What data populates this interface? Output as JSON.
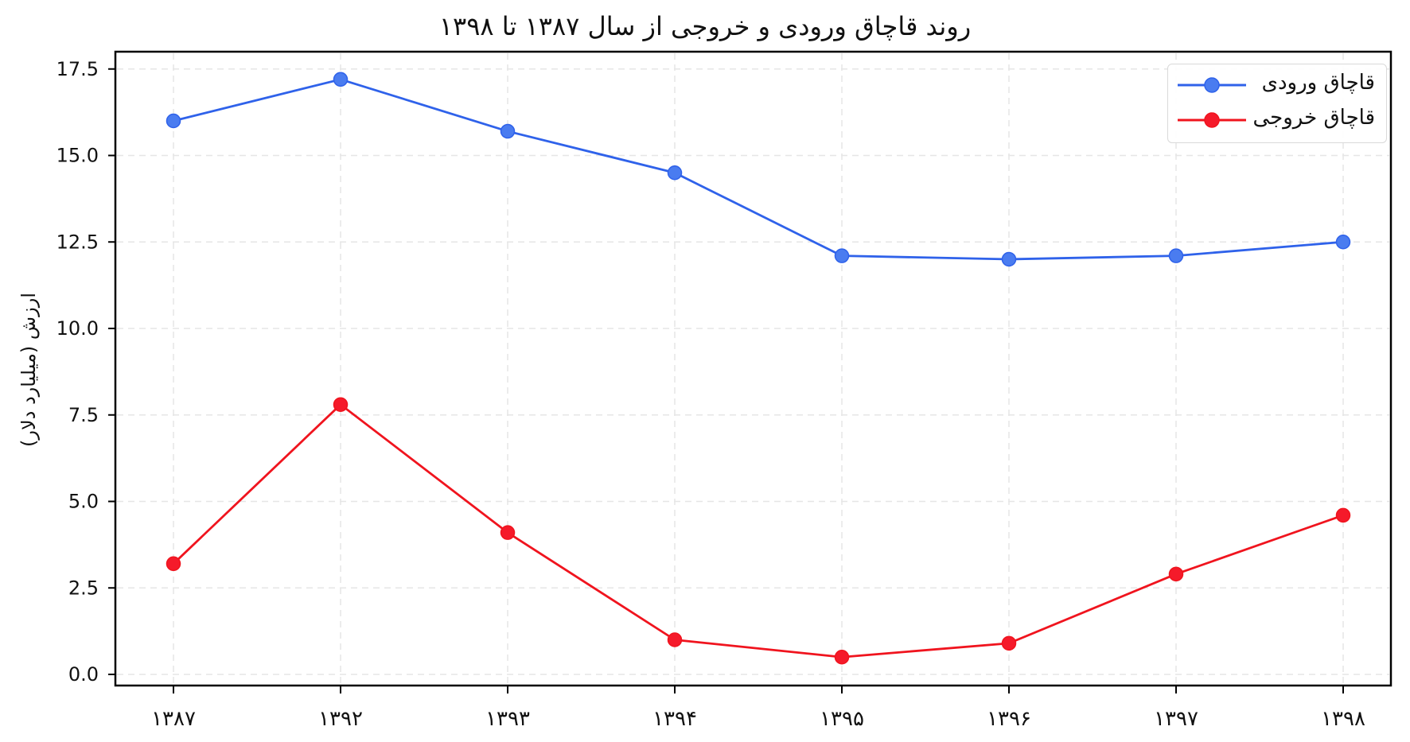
{
  "chart_data": {
    "type": "line",
    "title": "روند قاچاق ورودی و خروجی از سال ۱۳۸۷ تا ۱۳۹۸",
    "xlabel": "",
    "ylabel": "ارزش (میلیارد دلار)",
    "categories": [
      "۱۳۸۷",
      "۱۳۹۲",
      "۱۳۹۳",
      "۱۳۹۴",
      "۱۳۹۵",
      "۱۳۹۶",
      "۱۳۹۷",
      "۱۳۹۸"
    ],
    "series": [
      {
        "name": "قاچاق ورودی",
        "color": "#2f62ea",
        "marker_color": "#4a7cf0",
        "values": [
          16.0,
          17.2,
          15.7,
          14.5,
          12.1,
          12.0,
          12.1,
          12.5
        ]
      },
      {
        "name": "قاچاق خروجی",
        "color": "#f0141e",
        "marker_color": "#f51a2a",
        "values": [
          3.2,
          7.8,
          4.1,
          1.0,
          0.5,
          0.9,
          2.9,
          4.6
        ]
      }
    ],
    "yticks": [
      "0.0",
      "2.5",
      "5.0",
      "7.5",
      "10.0",
      "12.5",
      "15.0",
      "17.5"
    ],
    "ylim": [
      -0.6,
      18.5
    ],
    "grid": true,
    "legend_position": "upper right"
  }
}
